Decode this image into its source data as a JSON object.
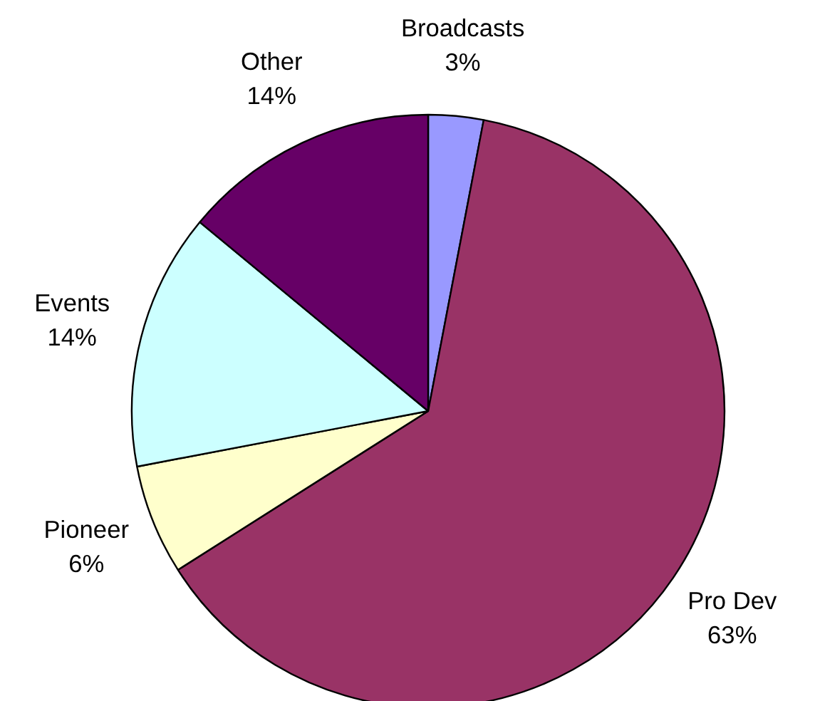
{
  "chart_data": {
    "type": "pie",
    "categories": [
      "Broadcasts",
      "Pro Dev",
      "Pioneer",
      "Events",
      "Other"
    ],
    "values": [
      3,
      63,
      6,
      14,
      14
    ],
    "colors": [
      "#9999ff",
      "#993366",
      "#ffffcc",
      "#ccffff",
      "#660066"
    ],
    "value_labels": [
      "3%",
      "63%",
      "6%",
      "14%",
      "14%"
    ]
  }
}
